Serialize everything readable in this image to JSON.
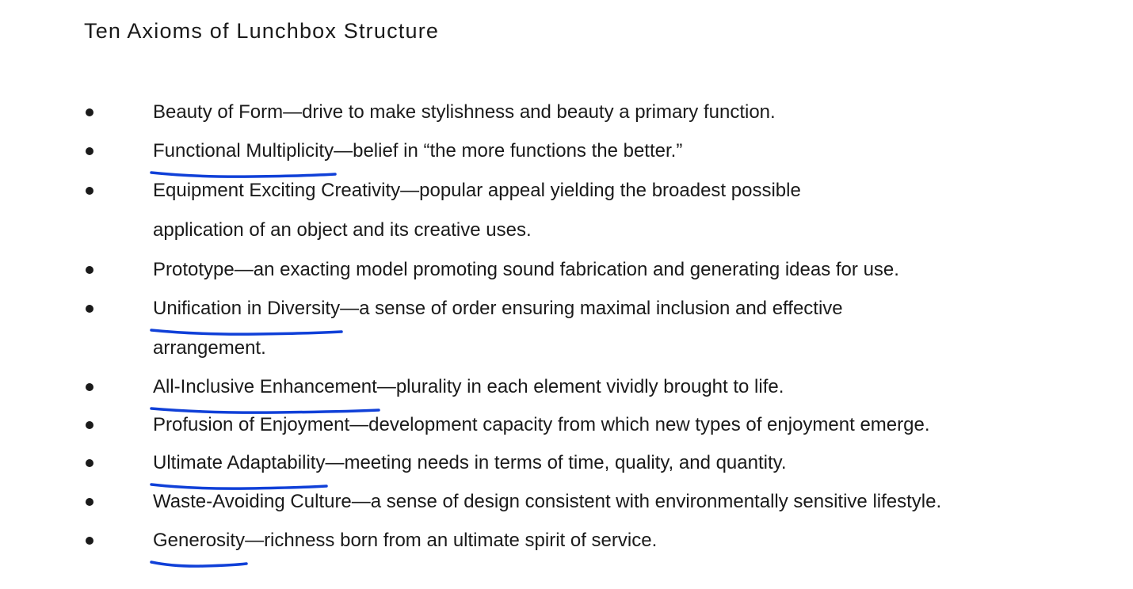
{
  "title": "Ten Axioms of Lunchbox Structure",
  "underline_color": "#1040d8",
  "axioms": [
    {
      "term": "Beauty of Form",
      "separator": "—",
      "description": "drive to make stylishness and beauty a primary function.",
      "continuation": "",
      "underlined": false
    },
    {
      "term": "Functional Multiplicity",
      "separator": "—",
      "description": "belief in “the more functions the better.”",
      "continuation": "",
      "underlined": true
    },
    {
      "term": "Equipment Exciting Creativity",
      "separator": "—",
      "description": "popular appeal yielding the broadest possible",
      "continuation": "application of an object and its creative uses.",
      "underlined": false
    },
    {
      "term": "Prototype",
      "separator": "—",
      "description": "an exacting model promoting sound fabrication and generating ideas for use.",
      "continuation": "",
      "underlined": false
    },
    {
      "term": "Unification in Diversity",
      "separator": "—",
      "description": "a sense of order ensuring maximal inclusion and effective",
      "continuation": "arrangement.",
      "underlined": true
    },
    {
      "term": "All-Inclusive Enhancement",
      "separator": "—",
      "description": "plurality in each element vividly brought to life.",
      "continuation": "",
      "underlined": true
    },
    {
      "term": "Profusion of Enjoyment",
      "separator": "—",
      "description": "development capacity from which new types of enjoyment emerge.",
      "continuation": "",
      "underlined": false
    },
    {
      "term": "Ultimate Adaptability",
      "separator": "—",
      "description": "meeting needs in terms of time, quality, and quantity.",
      "continuation": "",
      "underlined": true
    },
    {
      "term": "Waste-Avoiding Culture",
      "separator": "—",
      "description": "a sense of design consistent with environmentally sensitive lifestyle.",
      "continuation": "",
      "underlined": false
    },
    {
      "term": "Generosity",
      "separator": "—",
      "description": "richness born from an ultimate spirit of service.",
      "continuation": "",
      "underlined": true
    }
  ]
}
